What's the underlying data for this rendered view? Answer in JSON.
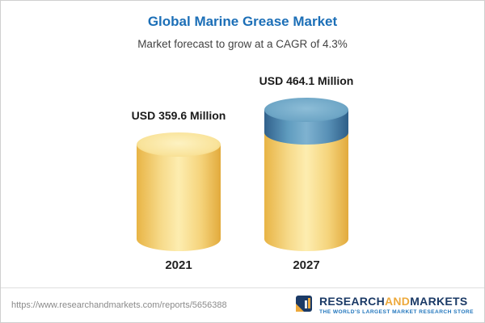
{
  "header": {
    "title": "Global Marine Grease Market",
    "subtitle": "Market forecast to grow at a CAGR of 4.3%"
  },
  "chart_data": {
    "type": "bar",
    "title": "Global Marine Grease Market",
    "subtitle": "Market forecast to grow at a CAGR of 4.3%",
    "categories": [
      "2021",
      "2027"
    ],
    "values": [
      359.6,
      464.1
    ],
    "value_labels": [
      "USD 359.6 Million",
      "USD 464.1 Million"
    ],
    "unit": "USD Million",
    "cagr_percent": 4.3,
    "highlight": {
      "category": "2027",
      "segment_represents": "forecast growth over 2021"
    },
    "colors": {
      "bar_fill": "#f6d988",
      "growth_segment_fill": "#5f9cbf",
      "title_text": "#1c6fb7"
    },
    "legend": "none",
    "grid": "off"
  },
  "footer": {
    "source_url": "https://www.researchandmarkets.com/reports/5656388",
    "logo": {
      "word_research": "RESEARCH",
      "word_and": "AND",
      "word_markets": "MARKETS",
      "tagline": "THE WORLD'S LARGEST MARKET RESEARCH STORE"
    }
  }
}
